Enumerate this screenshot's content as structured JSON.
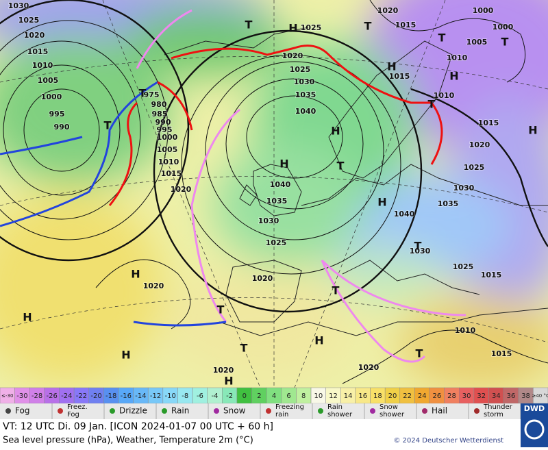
{
  "map": {
    "pressure_labels": [
      "1030",
      "1025",
      "1020",
      "1015",
      "1010",
      "1005",
      "1000",
      "995",
      "990",
      "975",
      "980",
      "985",
      "990",
      "995",
      "1000",
      "1005",
      "1010",
      "1015",
      "1020",
      "1025",
      "1030",
      "1035",
      "1040",
      "1040",
      "1035",
      "1030",
      "1025",
      "1020",
      "1020",
      "1020",
      "1025",
      "1020",
      "1015",
      "1000",
      "1000",
      "1005",
      "1010",
      "1015",
      "1010",
      "1015",
      "1020",
      "1025",
      "1030",
      "1035",
      "1040",
      "1030",
      "1025",
      "1015",
      "1010",
      "1015",
      "1020",
      "1020",
      "H",
      "T",
      "T",
      "T",
      "T",
      "H",
      "H",
      "T",
      "H",
      "T",
      "T",
      "H",
      "H",
      "T",
      "H",
      "T",
      "H",
      "H",
      "T",
      "T",
      "H",
      "T",
      "T",
      "H",
      "H"
    ]
  },
  "scale": [
    {
      "label": "≤-30",
      "color": "#f0b0e8"
    },
    {
      "label": "-30",
      "color": "#e090e8"
    },
    {
      "label": "-28",
      "color": "#d080e8"
    },
    {
      "label": "-26",
      "color": "#b870e8"
    },
    {
      "label": "-24",
      "color": "#a070f0"
    },
    {
      "label": "-22",
      "color": "#8878f8"
    },
    {
      "label": "-20",
      "color": "#7080f0"
    },
    {
      "label": "-18",
      "color": "#5890f0"
    },
    {
      "label": "-16",
      "color": "#58a8f8"
    },
    {
      "label": "-14",
      "color": "#68b8f8"
    },
    {
      "label": "-12",
      "color": "#78c8f8"
    },
    {
      "label": "-10",
      "color": "#88d8f8"
    },
    {
      "label": "-8",
      "color": "#98e8f0"
    },
    {
      "label": "-6",
      "color": "#a0f0e0"
    },
    {
      "label": "-4",
      "color": "#b0f0d0"
    },
    {
      "label": "-2",
      "color": "#88e8b8"
    },
    {
      "label": "0",
      "color": "#40c040"
    },
    {
      "label": "2",
      "color": "#60d060"
    },
    {
      "label": "4",
      "color": "#80e080"
    },
    {
      "label": "6",
      "color": "#a0e890"
    },
    {
      "label": "8",
      "color": "#c0f0a0"
    },
    {
      "label": "10",
      "color": "#f8f8e8"
    },
    {
      "label": "12",
      "color": "#f8f8c8"
    },
    {
      "label": "14",
      "color": "#f8f0a8"
    },
    {
      "label": "16",
      "color": "#f8e888"
    },
    {
      "label": "18",
      "color": "#f8e068"
    },
    {
      "label": "20",
      "color": "#f0d048"
    },
    {
      "label": "22",
      "color": "#f0c040"
    },
    {
      "label": "24",
      "color": "#f0a830"
    },
    {
      "label": "26",
      "color": "#f09040"
    },
    {
      "label": "28",
      "color": "#f08060"
    },
    {
      "label": "30",
      "color": "#e86060"
    },
    {
      "label": "32",
      "color": "#e05050"
    },
    {
      "label": "34",
      "color": "#d05050"
    },
    {
      "label": "36",
      "color": "#c06868"
    },
    {
      "label": "38",
      "color": "#b08888"
    },
    {
      "label": "≥40 °C",
      "color": "#d8d8d8"
    }
  ],
  "legend": [
    "Fog",
    "Freez. Fog",
    "Drizzle",
    "Rain",
    "Snow",
    "Freezing rain",
    "Rain shower",
    "Snow shower",
    "Hail",
    "Thunder storm"
  ],
  "footer": {
    "valid_time": "VT: 12 UTC Di.  09 Jan. [ICON 2024-01-07  00 UTC + 60 h]",
    "parameters": "Sea level pressure (hPa), Weather, Temperature 2m (°C)",
    "copyright": "© 2024 Deutscher Wetterdienst",
    "logo": "DWD"
  }
}
